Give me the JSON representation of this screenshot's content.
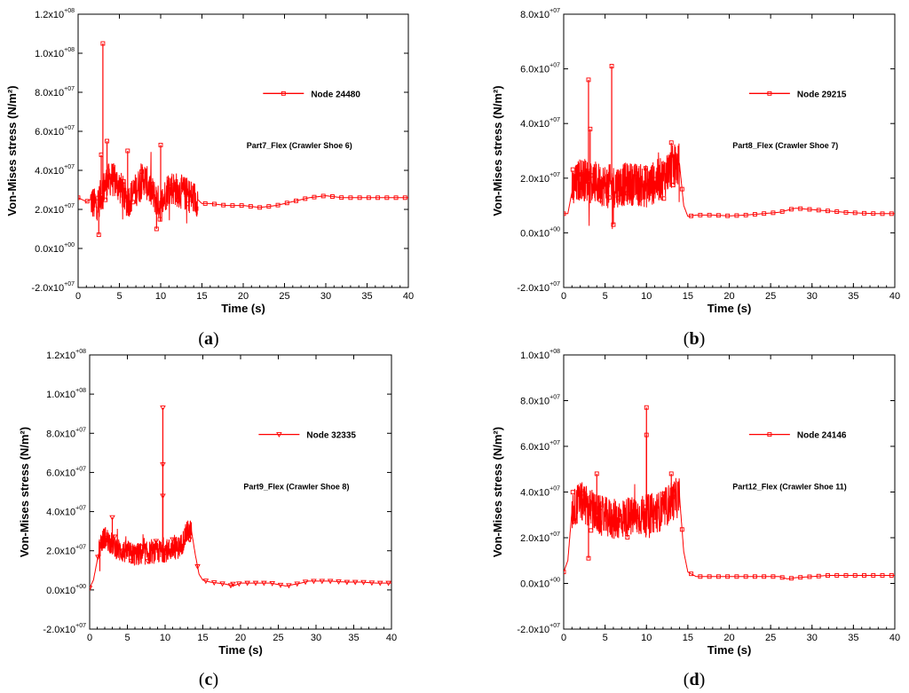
{
  "chart_data": [
    {
      "type": "line",
      "panel_label": "a",
      "xlabel": "Time (s)",
      "ylabel": "Von-Mises stress (N/m²)",
      "xlim": [
        0,
        40
      ],
      "ylim": [
        -20000000,
        120000000
      ],
      "x_ticks": [
        "0",
        "5",
        "10",
        "15",
        "20",
        "25",
        "30",
        "35",
        "40"
      ],
      "y_ticks": [
        {
          "mantissa": "-2.0x10",
          "exp": "+07"
        },
        {
          "mantissa": "0.0x10",
          "exp": "+00"
        },
        {
          "mantissa": "2.0x10",
          "exp": "+07"
        },
        {
          "mantissa": "4.0x10",
          "exp": "+07"
        },
        {
          "mantissa": "6.0x10",
          "exp": "+07"
        },
        {
          "mantissa": "8.0x10",
          "exp": "+07"
        },
        {
          "mantissa": "1.0x10",
          "exp": "+08"
        },
        {
          "mantissa": "1.2x10",
          "exp": "+08"
        }
      ],
      "annotation": "Part7_Flex (Crawler Shoe 6)",
      "color": "#ff0000",
      "marker": "square",
      "series": [
        {
          "name": "Node 24480",
          "noisy_region": {
            "start": 1.5,
            "end": 14.5,
            "center": 28000000,
            "amplitude": 9000000
          },
          "x": [
            0,
            0.5,
            1,
            1.5,
            2,
            2.5,
            3,
            3.5,
            4,
            5,
            6,
            7,
            8,
            9,
            10,
            11,
            12,
            13,
            14,
            14.5,
            15,
            16,
            18,
            20,
            22,
            24,
            26,
            28,
            30,
            32,
            34,
            36,
            38,
            40
          ],
          "y": [
            26000000,
            25000000,
            24000000,
            25000000,
            22000000,
            24000000,
            30000000,
            34000000,
            36000000,
            32000000,
            24000000,
            30000000,
            36000000,
            28000000,
            22000000,
            32000000,
            30000000,
            28000000,
            26000000,
            25000000,
            23000000,
            23000000,
            22000000,
            22000000,
            21000000,
            22000000,
            24000000,
            26000000,
            27000000,
            26000000,
            26000000,
            26000000,
            26000000,
            26000000
          ],
          "spikes": [
            {
              "x": 3,
              "y": 105000000
            },
            {
              "x": 3.5,
              "y": 55000000
            },
            {
              "x": 2.8,
              "y": 48000000
            },
            {
              "x": 10,
              "y": 53000000
            },
            {
              "x": 6,
              "y": 50000000
            },
            {
              "x": 2.5,
              "y": 7000000
            },
            {
              "x": 9.5,
              "y": 10000000
            }
          ]
        }
      ]
    },
    {
      "type": "line",
      "panel_label": "b",
      "xlabel": "Time (s)",
      "ylabel": "Von-Mises stress (N/m²)",
      "xlim": [
        0,
        40
      ],
      "ylim": [
        -20000000,
        80000000
      ],
      "x_ticks": [
        "0",
        "5",
        "10",
        "15",
        "20",
        "25",
        "30",
        "35",
        "40"
      ],
      "y_ticks": [
        {
          "mantissa": "-2.0x10",
          "exp": "+07"
        },
        {
          "mantissa": "0.0x10",
          "exp": "+00"
        },
        {
          "mantissa": "2.0x10",
          "exp": "+07"
        },
        {
          "mantissa": "4.0x10",
          "exp": "+07"
        },
        {
          "mantissa": "6.0x10",
          "exp": "+07"
        },
        {
          "mantissa": "8.0x10",
          "exp": "+07"
        }
      ],
      "annotation": "Part8_Flex (Crawler Shoe 7)",
      "color": "#ff0000",
      "marker": "square",
      "series": [
        {
          "name": "Node 29215",
          "noisy_region": {
            "start": 1,
            "end": 14,
            "center": 18000000,
            "amplitude": 8000000
          },
          "x": [
            0,
            0.5,
            1,
            2,
            4,
            6,
            8,
            10,
            12,
            13,
            14,
            14.5,
            15,
            16,
            18,
            20,
            22,
            24,
            26,
            28,
            30,
            32,
            34,
            36,
            38,
            40
          ],
          "y": [
            7000000,
            7000000,
            15000000,
            20000000,
            18000000,
            17000000,
            18000000,
            17000000,
            20000000,
            24000000,
            25000000,
            10000000,
            6000000,
            6500000,
            6500000,
            6200000,
            6500000,
            7000000,
            7500000,
            9000000,
            8500000,
            8000000,
            7500000,
            7200000,
            7000000,
            7000000
          ],
          "spikes": [
            {
              "x": 3,
              "y": 56000000
            },
            {
              "x": 5.8,
              "y": 61000000
            },
            {
              "x": 3.2,
              "y": 38000000
            },
            {
              "x": 13,
              "y": 33000000
            },
            {
              "x": 6,
              "y": 3000000
            }
          ]
        }
      ]
    },
    {
      "type": "line",
      "panel_label": "c",
      "xlabel": "Time (s)",
      "ylabel": "Von-Mises stress (N/m²)",
      "xlim": [
        0,
        40
      ],
      "ylim": [
        -20000000,
        120000000
      ],
      "x_ticks": [
        "0",
        "5",
        "10",
        "15",
        "20",
        "25",
        "30",
        "35",
        "40"
      ],
      "y_ticks": [
        {
          "mantissa": "-2.0x10",
          "exp": "+07"
        },
        {
          "mantissa": "0.0x10",
          "exp": "+00"
        },
        {
          "mantissa": "2.0x10",
          "exp": "+07"
        },
        {
          "mantissa": "4.0x10",
          "exp": "+07"
        },
        {
          "mantissa": "6.0x10",
          "exp": "+07"
        },
        {
          "mantissa": "8.0x10",
          "exp": "+07"
        },
        {
          "mantissa": "1.0x10",
          "exp": "+08"
        },
        {
          "mantissa": "1.2x10",
          "exp": "+08"
        }
      ],
      "annotation": "Part9_Flex (Crawler Shoe 8)",
      "color": "#ff0000",
      "marker": "triangle-down",
      "series": [
        {
          "name": "Node 32335",
          "noisy_region": {
            "start": 1.2,
            "end": 13.5,
            "center": 20000000,
            "amplitude": 6000000
          },
          "x": [
            0,
            0.5,
            1,
            1.5,
            2,
            4,
            6,
            8,
            10,
            12,
            13,
            13.5,
            14,
            14.5,
            15,
            16,
            18,
            19,
            20,
            22,
            24,
            26,
            28,
            29,
            30,
            32,
            34,
            36,
            38,
            40
          ],
          "y": [
            1000000,
            5000000,
            15000000,
            24000000,
            27000000,
            20000000,
            18000000,
            19000000,
            20000000,
            22000000,
            30000000,
            30000000,
            18000000,
            8000000,
            5000000,
            4000000,
            3000000,
            2000000,
            3500000,
            3500000,
            3500000,
            2000000,
            3500000,
            4500000,
            4500000,
            4500000,
            4000000,
            4000000,
            3500000,
            3500000
          ],
          "spikes": [
            {
              "x": 9.7,
              "y": 93000000
            },
            {
              "x": 9.7,
              "y": 64000000
            },
            {
              "x": 9.7,
              "y": 48000000
            },
            {
              "x": 3,
              "y": 37000000
            },
            {
              "x": 19,
              "y": 3000000
            }
          ]
        }
      ]
    },
    {
      "type": "line",
      "panel_label": "d",
      "xlabel": "Time (s)",
      "ylabel": "Von-Mises stress (N/m²)",
      "xlim": [
        0,
        40
      ],
      "ylim": [
        -20000000,
        100000000
      ],
      "x_ticks": [
        "0",
        "5",
        "10",
        "15",
        "20",
        "25",
        "30",
        "35",
        "40"
      ],
      "y_ticks": [
        {
          "mantissa": "-2.0x10",
          "exp": "+07"
        },
        {
          "mantissa": "0.0x10",
          "exp": "+00"
        },
        {
          "mantissa": "2.0x10",
          "exp": "+07"
        },
        {
          "mantissa": "4.0x10",
          "exp": "+07"
        },
        {
          "mantissa": "6.0x10",
          "exp": "+07"
        },
        {
          "mantissa": "8.0x10",
          "exp": "+07"
        },
        {
          "mantissa": "1.0x10",
          "exp": "+08"
        }
      ],
      "annotation": "Part12_Flex (Crawler Shoe 11)",
      "color": "#ff0000",
      "marker": "square",
      "series": [
        {
          "name": "Node 24146",
          "noisy_region": {
            "start": 1,
            "end": 14,
            "center": 30000000,
            "amplitude": 9000000
          },
          "x": [
            0,
            0.5,
            1,
            2,
            4,
            6,
            8,
            10,
            12,
            13,
            14,
            14.5,
            15,
            16,
            18,
            20,
            22,
            24,
            26,
            27,
            28,
            30,
            32,
            34,
            36,
            38,
            40
          ],
          "y": [
            5000000,
            10000000,
            32000000,
            36000000,
            30000000,
            28000000,
            29000000,
            30000000,
            32000000,
            36000000,
            38000000,
            14000000,
            5000000,
            3000000,
            3000000,
            3000000,
            3000000,
            3000000,
            3000000,
            2000000,
            2500000,
            3000000,
            3500000,
            3500000,
            3500000,
            3500000,
            3500000
          ],
          "spikes": [
            {
              "x": 10,
              "y": 77000000
            },
            {
              "x": 10,
              "y": 65000000
            },
            {
              "x": 4,
              "y": 48000000
            },
            {
              "x": 13,
              "y": 48000000
            },
            {
              "x": 3,
              "y": 11000000
            }
          ]
        }
      ]
    }
  ]
}
